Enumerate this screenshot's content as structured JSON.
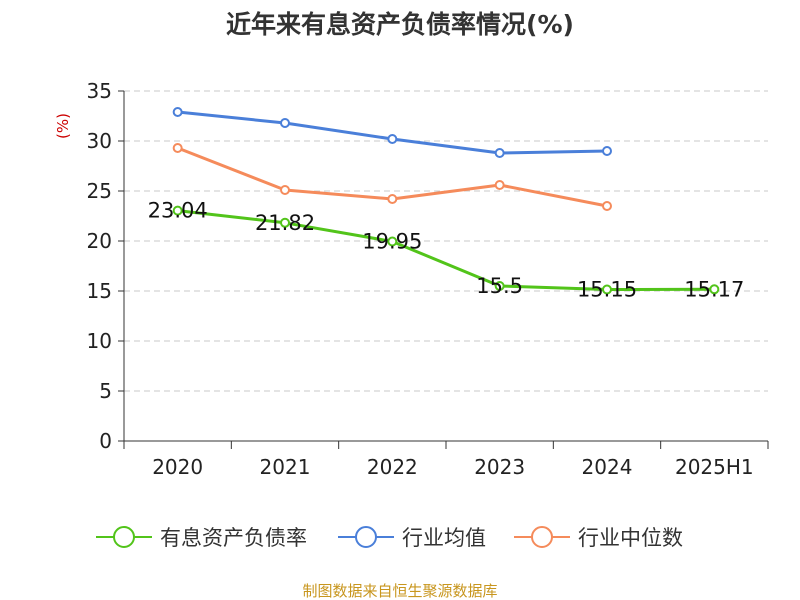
{
  "chart_data": {
    "type": "line",
    "title": "近年来有息资产负债率情况(%)",
    "ylabel": "(%)",
    "xlabel": "",
    "categories": [
      "2020",
      "2021",
      "2022",
      "2023",
      "2024",
      "2025H1"
    ],
    "ylim": [
      0,
      35
    ],
    "yticks": [
      0,
      5,
      10,
      15,
      20,
      25,
      30,
      35
    ],
    "grid": true,
    "legend_position": "bottom",
    "series": [
      {
        "name": "有息资产负债率",
        "color": "#52c41a",
        "values": [
          23.04,
          21.82,
          19.95,
          15.5,
          15.15,
          15.17
        ],
        "labels": [
          "23.04",
          "21.82",
          "19.95",
          "15.5",
          "15.15",
          "15.17"
        ]
      },
      {
        "name": "行业均值",
        "color": "#4a7fd9",
        "values": [
          32.9,
          31.8,
          30.2,
          28.8,
          29.0,
          null
        ],
        "labels": []
      },
      {
        "name": "行业中位数",
        "color": "#f58b5b",
        "values": [
          29.3,
          25.1,
          24.2,
          25.6,
          23.5,
          null
        ],
        "labels": []
      }
    ]
  },
  "source": {
    "text": "制图数据来自恒生聚源数据库",
    "color": "#c8961e"
  },
  "colors": {
    "axis": "#333333",
    "grid": "#c8c8c8",
    "unit": "#cc0000"
  }
}
